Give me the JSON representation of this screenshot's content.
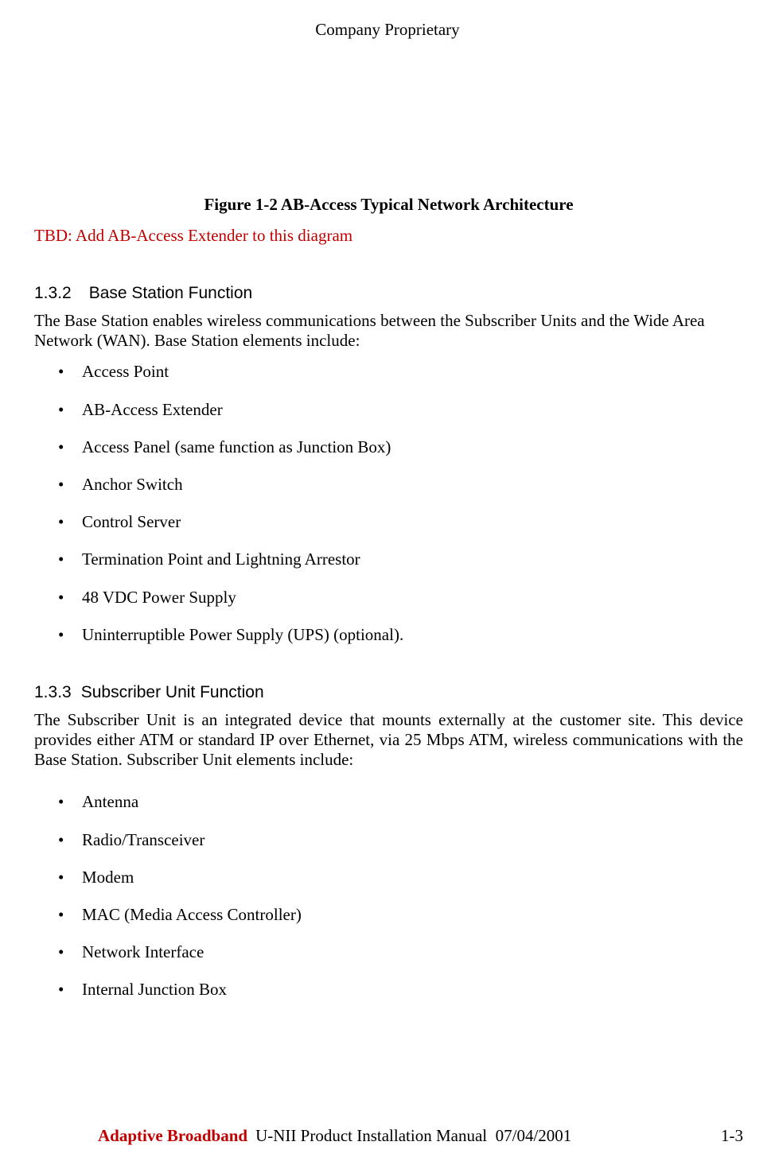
{
  "colors": {
    "text": "#000000",
    "accent_red": "#c00000",
    "background": "#ffffff"
  },
  "typography": {
    "body_family": "Times New Roman",
    "heading_family": "Arial",
    "body_size_pt": 16,
    "heading_size_pt": 16
  },
  "header": {
    "classification": "Company Proprietary"
  },
  "figure": {
    "caption": "Figure 1-2 AB-Access Typical  Network Architecture"
  },
  "tbd_note": "TBD: Add AB-Access Extender to this diagram",
  "section_132": {
    "number": "1.3.2",
    "title": "Base Station Function",
    "intro": "The Base Station enables wireless communications between the Subscriber Units and the Wide Area Network (WAN).  Base Station elements include:",
    "items": [
      "Access Point",
      "AB-Access Extender",
      "Access Panel (same function as Junction Box)",
      "Anchor Switch",
      "Control Server",
      "Termination Point and Lightning Arrestor",
      "48 VDC Power Supply",
      "Uninterruptible Power Supply (UPS) (optional)."
    ]
  },
  "section_133": {
    "number": "1.3.3",
    "title": "Subscriber Unit Function",
    "intro": "The Subscriber Unit is an integrated device that mounts externally at the customer site. This device provides either ATM or standard IP over Ethernet, via 25 Mbps ATM, wireless communications with the Base Station.  Subscriber Unit elements include:",
    "items": [
      "Antenna",
      "Radio/Transceiver",
      "Modem",
      "MAC (Media Access Controller)",
      "Network Interface",
      "Internal Junction Box"
    ]
  },
  "footer": {
    "brand": "Adaptive Broadband",
    "manual_title": "U-NII Product Installation Manual",
    "date": "07/04/2001",
    "page_number": "1-3"
  }
}
